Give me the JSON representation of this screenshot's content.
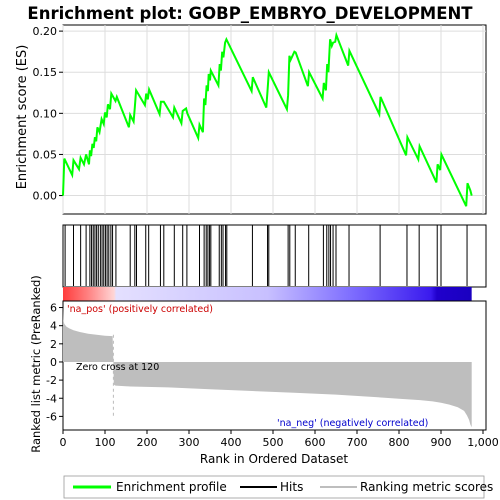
{
  "title": "Enrichment plot: GOBP_EMBRYO_DEVELOPMENT",
  "colors": {
    "enrichment": "#00ff00",
    "hits": "#000000",
    "metric": "#bebebe",
    "pos_label": "#cc0000",
    "neg_label": "#0000cc"
  },
  "chart_data": [
    {
      "type": "line",
      "name": "enrichment-profile",
      "ylabel": "Enrichment score (ES)",
      "xlim": [
        0,
        1000
      ],
      "ylim": [
        -0.02,
        0.205
      ],
      "yticks": [
        0.0,
        0.05,
        0.1,
        0.15,
        0.2
      ],
      "ytick_labels": [
        "0.00",
        "0.05",
        "0.10",
        "0.15",
        "0.20"
      ],
      "grid": true,
      "series": [
        {
          "x": [
            0,
            3,
            22,
            25,
            38,
            42,
            50,
            55,
            62,
            64,
            67,
            70,
            73,
            76,
            79,
            82,
            87,
            92,
            97,
            100,
            104,
            107,
            112,
            115,
            125,
            128,
            157,
            160,
            168,
            171,
            174,
            195,
            198,
            202,
            205,
            230,
            233,
            240,
            262,
            265,
            282,
            285,
            293,
            296,
            322,
            325,
            333,
            336,
            339,
            342,
            345,
            347,
            350,
            352,
            370,
            373,
            376,
            379,
            382,
            386,
            389,
            449,
            452,
            484,
            487,
            490,
            533,
            536,
            539,
            542,
            551,
            554,
            583,
            586,
            618,
            621,
            626,
            629,
            632,
            636,
            640,
            643,
            648,
            651,
            679,
            682,
            753,
            756,
            817,
            820,
            846,
            849,
            889,
            892,
            898,
            901,
            960,
            963,
            970,
            973
          ],
          "y": [
            0.0,
            0.045,
            0.025,
            0.043,
            0.032,
            0.046,
            0.038,
            0.05,
            0.038,
            0.055,
            0.048,
            0.063,
            0.058,
            0.071,
            0.066,
            0.083,
            0.077,
            0.093,
            0.087,
            0.101,
            0.095,
            0.111,
            0.105,
            0.124,
            0.115,
            0.12,
            0.083,
            0.098,
            0.09,
            0.107,
            0.128,
            0.11,
            0.124,
            0.117,
            0.129,
            0.099,
            0.114,
            0.114,
            0.095,
            0.107,
            0.088,
            0.103,
            0.106,
            0.1,
            0.07,
            0.086,
            0.077,
            0.118,
            0.11,
            0.134,
            0.127,
            0.148,
            0.14,
            0.152,
            0.134,
            0.16,
            0.152,
            0.175,
            0.168,
            0.186,
            0.19,
            0.127,
            0.144,
            0.107,
            0.127,
            0.15,
            0.105,
            0.122,
            0.17,
            0.165,
            0.175,
            0.174,
            0.133,
            0.15,
            0.118,
            0.137,
            0.128,
            0.16,
            0.15,
            0.19,
            0.182,
            0.186,
            0.187,
            0.195,
            0.158,
            0.176,
            0.099,
            0.12,
            0.049,
            0.071,
            0.044,
            0.06,
            0.016,
            0.038,
            0.031,
            0.05,
            -0.013,
            0.015,
            0.006,
            0.0
          ]
        }
      ]
    },
    {
      "type": "scatter",
      "name": "hits",
      "x": [
        5,
        25,
        42,
        55,
        64,
        68,
        72,
        76,
        80,
        84,
        89,
        93,
        97,
        101,
        105,
        109,
        114,
        118,
        126,
        160,
        171,
        175,
        197,
        204,
        232,
        240,
        265,
        285,
        295,
        325,
        336,
        341,
        345,
        349,
        352,
        372,
        377,
        381,
        387,
        390,
        451,
        487,
        490,
        536,
        540,
        553,
        585,
        620,
        628,
        633,
        637,
        643,
        650,
        681,
        755,
        819,
        848,
        891,
        900,
        962
      ]
    },
    {
      "type": "area",
      "name": "ranked-list-metric",
      "ylabel": "Ranked list metric (PreRanked)",
      "xlabel": "Rank in Ordered Dataset",
      "xlim": [
        0,
        1000
      ],
      "ylim": [
        -7.5,
        6.5
      ],
      "xticks": [
        0,
        100,
        200,
        300,
        400,
        500,
        600,
        700,
        800,
        900,
        1000
      ],
      "xtick_labels": [
        "0",
        "100",
        "200",
        "300",
        "400",
        "500",
        "600",
        "700",
        "800",
        "900",
        "1,000"
      ],
      "yticks": [
        -6,
        -4,
        -2,
        0,
        2,
        4,
        6
      ],
      "ytick_labels": [
        "-6",
        "-4",
        "-2",
        "0",
        "2",
        "4",
        "6"
      ],
      "x": [
        0,
        1,
        3,
        8,
        15,
        25,
        40,
        60,
        80,
        100,
        118,
        120,
        121,
        125,
        160,
        250,
        350,
        450,
        550,
        650,
        750,
        800,
        850,
        880,
        900,
        920,
        940,
        955,
        962,
        967,
        970,
        973
      ],
      "values": [
        6.0,
        4.6,
        4.2,
        3.9,
        3.7,
        3.5,
        3.3,
        3.1,
        3.0,
        2.9,
        2.85,
        0.0,
        -2.5,
        -2.6,
        -2.7,
        -2.8,
        -3.0,
        -3.2,
        -3.4,
        -3.6,
        -3.9,
        -4.05,
        -4.2,
        -4.35,
        -4.5,
        -4.7,
        -5.0,
        -5.4,
        -5.9,
        -6.4,
        -6.9,
        -7.2
      ],
      "zero_cross": 120,
      "annotations": {
        "positive": "'na_pos' (positively correlated)",
        "zero": "Zero cross at 120",
        "negative": "'na_neg' (negatively correlated)"
      }
    }
  ],
  "legend": {
    "position": "bottom",
    "items": [
      {
        "label": "Enrichment profile",
        "color": "#00ff00"
      },
      {
        "label": "Hits",
        "color": "#000000"
      },
      {
        "label": "Ranking metric scores",
        "color": "#bebebe"
      }
    ]
  }
}
